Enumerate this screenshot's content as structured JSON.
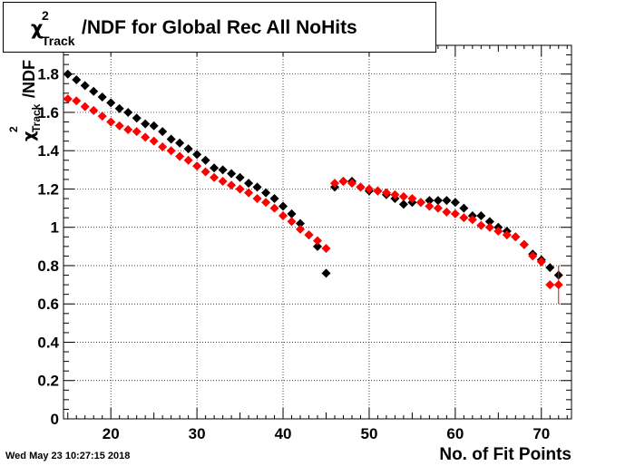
{
  "title": {
    "symbol": "χ",
    "superscript": "2",
    "subscript": "Track",
    "text": "/NDF for Global Rec All NoHits"
  },
  "timestamp": "Wed May 23 10:27:15 2018",
  "chart_data": {
    "type": "scatter",
    "title": "χ²_Track/NDF for Global Rec All NoHits",
    "xlabel": "No. of Fit Points",
    "ylabel": "χ²_Track/NDF",
    "xlim": [
      14.5,
      73.5
    ],
    "ylim": [
      0,
      1.95
    ],
    "x_ticks": [
      20,
      30,
      40,
      50,
      60,
      70
    ],
    "y_ticks": [
      0,
      0.2,
      0.4,
      0.6,
      0.8,
      1,
      1.2,
      1.4,
      1.6,
      1.8
    ],
    "y_tick_labels": [
      "0",
      "0.2",
      "0.4",
      "0.6",
      "0.8",
      "1",
      "1.2",
      "1.4",
      "1.6",
      "1.8"
    ],
    "grid": true,
    "series": [
      {
        "color": "#000000",
        "marker": "diamond",
        "x": [
          15,
          16,
          17,
          18,
          19,
          20,
          21,
          22,
          23,
          24,
          25,
          26,
          27,
          28,
          29,
          30,
          31,
          32,
          33,
          34,
          35,
          36,
          37,
          38,
          39,
          40,
          41,
          42,
          43,
          44,
          45,
          46,
          47,
          48,
          49,
          50,
          51,
          52,
          53,
          54,
          55,
          56,
          57,
          58,
          59,
          60,
          61,
          62,
          63,
          64,
          65,
          66,
          67,
          68,
          69,
          70,
          71,
          72
        ],
        "y": [
          1.8,
          1.77,
          1.74,
          1.71,
          1.68,
          1.65,
          1.62,
          1.6,
          1.57,
          1.54,
          1.53,
          1.5,
          1.46,
          1.44,
          1.41,
          1.38,
          1.35,
          1.31,
          1.3,
          1.28,
          1.26,
          1.23,
          1.21,
          1.18,
          1.15,
          1.11,
          1.07,
          1.02,
          0.96,
          0.9,
          0.76,
          1.21,
          1.24,
          1.24,
          1.21,
          1.19,
          1.19,
          1.17,
          1.15,
          1.12,
          1.13,
          1.13,
          1.14,
          1.14,
          1.14,
          1.13,
          1.1,
          1.06,
          1.06,
          1.03,
          1.0,
          0.98,
          0.95,
          0.91,
          0.86,
          0.83,
          0.79,
          0.75
        ],
        "errors": [
          0.005,
          0.005,
          0.005,
          0.005,
          0.005,
          0.005,
          0.005,
          0.005,
          0.005,
          0.005,
          0.005,
          0.005,
          0.005,
          0.005,
          0.005,
          0.005,
          0.005,
          0.005,
          0.005,
          0.005,
          0.005,
          0.005,
          0.005,
          0.005,
          0.005,
          0.005,
          0.005,
          0.005,
          0.005,
          0.005,
          0.005,
          0.005,
          0.005,
          0.005,
          0.005,
          0.005,
          0.005,
          0.005,
          0.005,
          0.005,
          0.005,
          0.005,
          0.005,
          0.005,
          0.005,
          0.005,
          0.005,
          0.005,
          0.005,
          0.005,
          0.005,
          0.005,
          0.005,
          0.005,
          0.01,
          0.01,
          0.01,
          0.01
        ]
      },
      {
        "color": "#ff0000",
        "marker": "diamond",
        "x": [
          15,
          16,
          17,
          18,
          19,
          20,
          21,
          22,
          23,
          24,
          25,
          26,
          27,
          28,
          29,
          30,
          31,
          32,
          33,
          34,
          35,
          36,
          37,
          38,
          39,
          40,
          41,
          42,
          43,
          44,
          45,
          46,
          47,
          48,
          49,
          50,
          51,
          52,
          53,
          54,
          55,
          56,
          57,
          58,
          59,
          60,
          61,
          62,
          63,
          64,
          65,
          66,
          67,
          68,
          69,
          70,
          71,
          72
        ],
        "y": [
          1.67,
          1.66,
          1.63,
          1.61,
          1.58,
          1.55,
          1.53,
          1.51,
          1.5,
          1.47,
          1.45,
          1.42,
          1.4,
          1.37,
          1.35,
          1.32,
          1.29,
          1.26,
          1.24,
          1.22,
          1.2,
          1.18,
          1.15,
          1.13,
          1.1,
          1.06,
          1.03,
          0.99,
          0.96,
          0.93,
          0.89,
          1.23,
          1.24,
          1.23,
          1.21,
          1.2,
          1.19,
          1.18,
          1.17,
          1.16,
          1.15,
          1.13,
          1.11,
          1.1,
          1.08,
          1.07,
          1.05,
          1.04,
          1.01,
          1.0,
          0.98,
          0.96,
          0.95,
          0.91,
          0.85,
          0.82,
          0.7,
          0.7
        ],
        "errors": [
          0.005,
          0.005,
          0.005,
          0.005,
          0.005,
          0.005,
          0.005,
          0.005,
          0.005,
          0.005,
          0.005,
          0.005,
          0.005,
          0.005,
          0.005,
          0.005,
          0.005,
          0.005,
          0.005,
          0.005,
          0.005,
          0.005,
          0.005,
          0.005,
          0.005,
          0.005,
          0.005,
          0.005,
          0.005,
          0.005,
          0.005,
          0.005,
          0.005,
          0.005,
          0.005,
          0.005,
          0.005,
          0.005,
          0.005,
          0.005,
          0.005,
          0.005,
          0.005,
          0.005,
          0.005,
          0.005,
          0.005,
          0.005,
          0.005,
          0.005,
          0.005,
          0.005,
          0.005,
          0.01,
          0.01,
          0.01,
          0.02,
          0.1
        ]
      }
    ]
  }
}
